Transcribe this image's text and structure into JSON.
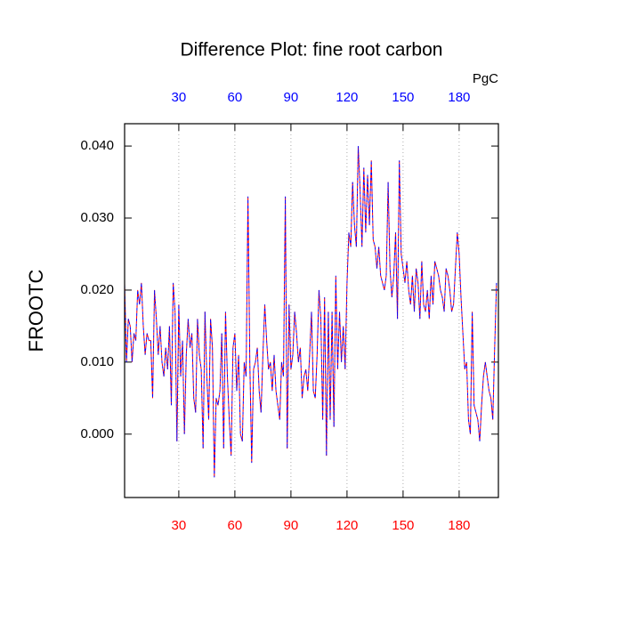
{
  "chart_data": {
    "type": "line",
    "title": "Difference Plot: fine root carbon",
    "units": "PgC",
    "y_label": "FROOTC",
    "x": [
      1,
      2,
      3,
      4,
      5,
      6,
      7,
      8,
      9,
      10,
      11,
      12,
      13,
      14,
      15,
      16,
      17,
      18,
      19,
      20,
      21,
      22,
      23,
      24,
      25,
      26,
      27,
      28,
      29,
      30,
      31,
      32,
      33,
      34,
      35,
      36,
      37,
      38,
      39,
      40,
      41,
      42,
      43,
      44,
      45,
      46,
      47,
      48,
      49,
      50,
      51,
      52,
      53,
      54,
      55,
      56,
      57,
      58,
      59,
      60,
      61,
      62,
      63,
      64,
      65,
      66,
      67,
      68,
      69,
      70,
      71,
      72,
      73,
      74,
      75,
      76,
      77,
      78,
      79,
      80,
      81,
      82,
      83,
      84,
      85,
      86,
      87,
      88,
      89,
      90,
      91,
      92,
      93,
      94,
      95,
      96,
      97,
      98,
      99,
      100,
      101,
      102,
      103,
      104,
      105,
      106,
      107,
      108,
      109,
      110,
      111,
      112,
      113,
      114,
      115,
      116,
      117,
      118,
      119,
      120,
      121,
      122,
      123,
      124,
      125,
      126,
      127,
      128,
      129,
      130,
      131,
      132,
      133,
      134,
      135,
      136,
      137,
      138,
      139,
      140,
      141,
      142,
      143,
      144,
      145,
      146,
      147,
      148,
      149,
      150,
      151,
      152,
      153,
      154,
      155,
      156,
      157,
      158,
      159,
      160,
      161,
      162,
      163,
      164,
      165,
      166,
      167,
      168,
      169,
      170,
      171,
      172,
      173,
      174,
      175,
      176,
      177,
      178,
      179,
      180,
      181,
      182,
      183,
      184,
      185,
      186,
      187,
      188,
      189,
      190,
      191,
      192,
      193,
      194,
      195,
      196,
      197,
      198,
      199,
      200
    ],
    "series": [
      {
        "color": "#ff0000",
        "values": [
          0.021,
          0.01,
          0.016,
          0.015,
          0.01,
          0.014,
          0.013,
          0.02,
          0.018,
          0.021,
          0.015,
          0.011,
          0.014,
          0.013,
          0.013,
          0.005,
          0.02,
          0.016,
          0.011,
          0.015,
          0.01,
          0.008,
          0.012,
          0.009,
          0.015,
          0.004,
          0.021,
          0.017,
          -0.001,
          0.018,
          0.008,
          0.013,
          0.0,
          0.011,
          0.016,
          0.012,
          0.014,
          0.005,
          0.003,
          0.016,
          0.011,
          0.009,
          -0.002,
          0.017,
          0.008,
          0.002,
          0.016,
          0.012,
          -0.006,
          0.005,
          0.004,
          0.006,
          0.014,
          -0.002,
          0.017,
          0.008,
          0.002,
          -0.003,
          0.012,
          0.014,
          0.006,
          0.011,
          0.0,
          -0.001,
          0.01,
          0.008,
          0.033,
          0.01,
          -0.004,
          0.009,
          0.01,
          0.012,
          0.006,
          0.003,
          0.011,
          0.018,
          0.013,
          0.009,
          0.01,
          0.006,
          0.011,
          0.006,
          0.004,
          0.002,
          0.01,
          0.008,
          0.033,
          -0.002,
          0.018,
          0.009,
          0.011,
          0.017,
          0.014,
          0.01,
          0.012,
          0.005,
          0.008,
          0.009,
          0.006,
          0.011,
          0.017,
          0.006,
          0.005,
          0.011,
          0.02,
          0.016,
          0.002,
          0.019,
          -0.003,
          0.017,
          0.002,
          0.017,
          0.001,
          0.022,
          0.009,
          0.017,
          0.01,
          0.015,
          0.009,
          0.021,
          0.028,
          0.026,
          0.035,
          0.029,
          0.026,
          0.04,
          0.034,
          0.026,
          0.037,
          0.028,
          0.036,
          0.029,
          0.038,
          0.027,
          0.026,
          0.023,
          0.026,
          0.022,
          0.021,
          0.02,
          0.022,
          0.035,
          0.023,
          0.019,
          0.022,
          0.028,
          0.016,
          0.038,
          0.025,
          0.023,
          0.021,
          0.024,
          0.02,
          0.018,
          0.022,
          0.017,
          0.023,
          0.021,
          0.016,
          0.024,
          0.018,
          0.017,
          0.02,
          0.016,
          0.022,
          0.018,
          0.024,
          0.023,
          0.022,
          0.02,
          0.019,
          0.017,
          0.023,
          0.022,
          0.02,
          0.017,
          0.018,
          0.023,
          0.028,
          0.025,
          0.019,
          0.014,
          0.009,
          0.01,
          0.002,
          0.0,
          0.017,
          0.004,
          0.003,
          0.002,
          -0.001,
          0.004,
          0.008,
          0.01,
          0.008,
          0.006,
          0.005,
          0.002,
          0.012,
          0.021
        ]
      },
      {
        "color": "#0000ff",
        "values": [
          0.021,
          0.01,
          0.016,
          0.015,
          0.01,
          0.014,
          0.013,
          0.02,
          0.018,
          0.021,
          0.015,
          0.011,
          0.014,
          0.013,
          0.013,
          0.005,
          0.02,
          0.016,
          0.011,
          0.015,
          0.01,
          0.008,
          0.012,
          0.009,
          0.015,
          0.004,
          0.021,
          0.017,
          -0.001,
          0.018,
          0.008,
          0.013,
          0.0,
          0.011,
          0.016,
          0.012,
          0.014,
          0.005,
          0.003,
          0.016,
          0.011,
          0.009,
          -0.002,
          0.017,
          0.008,
          0.002,
          0.016,
          0.012,
          -0.006,
          0.005,
          0.004,
          0.006,
          0.014,
          -0.002,
          0.017,
          0.008,
          0.002,
          -0.003,
          0.012,
          0.014,
          0.006,
          0.011,
          0.0,
          -0.001,
          0.01,
          0.008,
          0.033,
          0.01,
          -0.004,
          0.009,
          0.01,
          0.012,
          0.006,
          0.003,
          0.011,
          0.018,
          0.013,
          0.009,
          0.01,
          0.006,
          0.011,
          0.006,
          0.004,
          0.002,
          0.01,
          0.008,
          0.033,
          -0.002,
          0.018,
          0.009,
          0.011,
          0.017,
          0.014,
          0.01,
          0.012,
          0.005,
          0.008,
          0.009,
          0.006,
          0.011,
          0.017,
          0.006,
          0.005,
          0.011,
          0.02,
          0.016,
          0.002,
          0.019,
          -0.003,
          0.017,
          0.002,
          0.017,
          0.001,
          0.022,
          0.009,
          0.017,
          0.01,
          0.015,
          0.009,
          0.021,
          0.028,
          0.026,
          0.035,
          0.029,
          0.026,
          0.04,
          0.034,
          0.026,
          0.037,
          0.028,
          0.036,
          0.029,
          0.038,
          0.027,
          0.026,
          0.023,
          0.026,
          0.022,
          0.021,
          0.02,
          0.022,
          0.035,
          0.023,
          0.019,
          0.022,
          0.028,
          0.016,
          0.038,
          0.025,
          0.023,
          0.021,
          0.024,
          0.02,
          0.018,
          0.022,
          0.017,
          0.023,
          0.021,
          0.016,
          0.024,
          0.018,
          0.017,
          0.02,
          0.016,
          0.022,
          0.018,
          0.024,
          0.023,
          0.022,
          0.02,
          0.019,
          0.017,
          0.023,
          0.022,
          0.02,
          0.017,
          0.018,
          0.023,
          0.028,
          0.025,
          0.019,
          0.014,
          0.009,
          0.01,
          0.002,
          0.0,
          0.017,
          0.004,
          0.003,
          0.002,
          -0.001,
          0.004,
          0.008,
          0.01,
          0.008,
          0.006,
          0.005,
          0.002,
          0.012,
          0.021
        ]
      }
    ],
    "xlim": [
      1,
      201
    ],
    "xticks": [
      30,
      60,
      90,
      120,
      150,
      180
    ],
    "x_tick_color_bottom": "#ff0000",
    "x_tick_color_top": "#0000ff",
    "ylim": [
      -0.0088,
      0.0431
    ],
    "yticks": [
      {
        "value": 0,
        "label": "0.000"
      },
      {
        "value": 0.01,
        "label": "0.010"
      },
      {
        "value": 0.02,
        "label": "0.020"
      },
      {
        "value": 0.03,
        "label": "0.030"
      },
      {
        "value": 0.04,
        "label": "0.040"
      }
    ],
    "grid": true,
    "dashed": true
  }
}
